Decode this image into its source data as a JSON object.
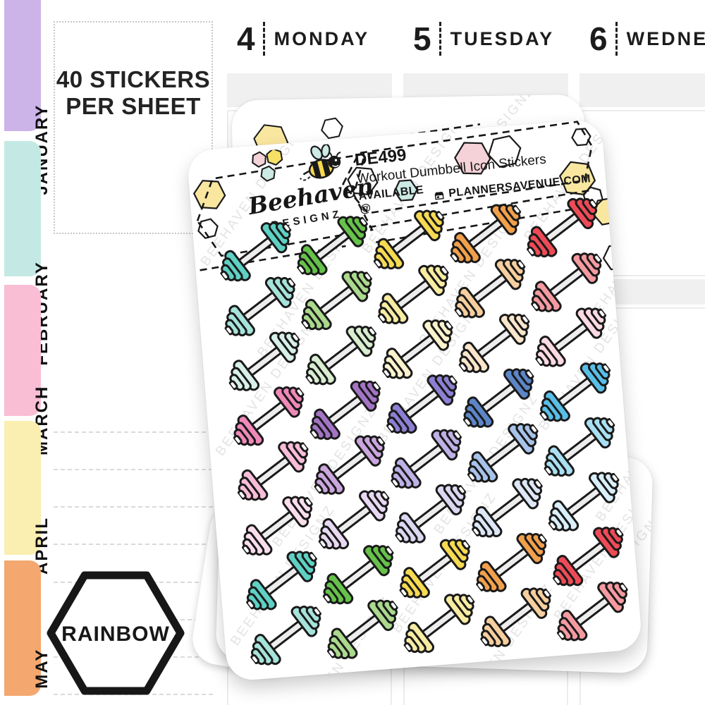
{
  "sidebar": {
    "months": [
      {
        "label": "JANUARY",
        "color": "#ccb4e9"
      },
      {
        "label": "FEBRUARY",
        "color": "#c4e9e4"
      },
      {
        "label": "MARCH",
        "color": "#f9bdd4"
      },
      {
        "label": "APRIL",
        "color": "#faeeb0"
      },
      {
        "label": "MAY",
        "color": "#f4a76e"
      }
    ],
    "info_box": {
      "line1": "40 STICKERS",
      "line2": "PER SHEET"
    },
    "badge_label": "RAINBOW"
  },
  "calendar": {
    "days": [
      {
        "number": "4",
        "name": "MONDAY"
      },
      {
        "number": "5",
        "name": "TUESDAY"
      },
      {
        "number": "6",
        "name": "WEDNESDAY"
      }
    ]
  },
  "sheet": {
    "logo": {
      "script": "Beehaven",
      "caps": "DESIGNZ"
    },
    "label": {
      "sku": "DE499",
      "title": "Workout Dumbbell Icon Stickers",
      "availability": "AVAILABLE @",
      "site": "PLANNERSAVENUE.COM"
    },
    "watermark": "BEEHAVEN DESIGNZ",
    "colors": {
      "hex_yellow": "#f9e7a0",
      "hex_pink": "#f4d2d8",
      "hex_teal": "#cdeae4"
    },
    "sticker_rows": [
      [
        "#5ed1c4",
        "#66c24a",
        "#f6da52",
        "#f2a04b",
        "#ee4b57"
      ],
      [
        "#a6e3da",
        "#abd98d",
        "#f8eca2",
        "#f6cf9f",
        "#f59aa1"
      ],
      [
        "#d7f0e9",
        "#d9edd1",
        "#faf3cd",
        "#f9e6cb",
        "#fcdae3"
      ],
      [
        "#ef89b8",
        "#a374c5",
        "#8d7fd3",
        "#5c86c7",
        "#58bfe7"
      ],
      [
        "#f8bdd8",
        "#cba6de",
        "#beb1e6",
        "#a8c3e9",
        "#a9dff3"
      ],
      [
        "#fbdeec",
        "#e8d9f3",
        "#dcd8f1",
        "#dde7f6",
        "#d9effa"
      ],
      [
        "#5ed1c4",
        "#66c24a",
        "#f6da52",
        "#f2a04b",
        "#ee4b57"
      ],
      [
        "#a6e3da",
        "#abd98d",
        "#f8eca2",
        "#f6cf9f",
        "#f59aa1"
      ]
    ]
  }
}
